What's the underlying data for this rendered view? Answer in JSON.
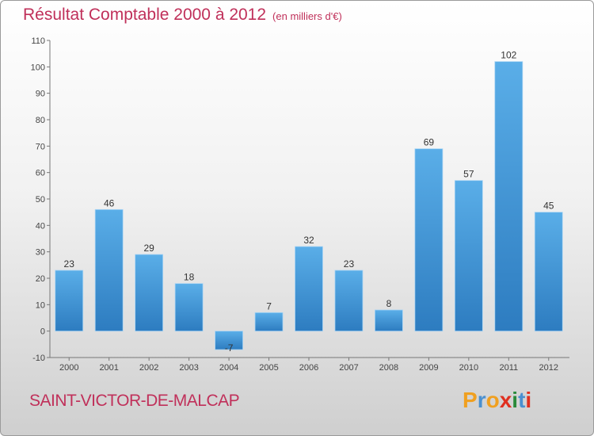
{
  "title": "Résultat Comptable 2000 à 2012",
  "subtitle": "(en milliers d'€)",
  "commune": "SAINT-VICTOR-DE-MALCAP",
  "logo": {
    "letters": [
      "P",
      "r",
      "o",
      "x",
      "i",
      "t",
      "i"
    ],
    "colors": [
      "#f0a020",
      "#4a90d0",
      "#f0a020",
      "#e03020",
      "#2a8a3a",
      "#4a90d0",
      "#e03020"
    ]
  },
  "colors": {
    "bar_top": "#5aaee8",
    "bar_bottom": "#2d7cc0",
    "title": "#c0305a"
  },
  "chart_data": {
    "type": "bar",
    "categories": [
      "2000",
      "2001",
      "2002",
      "2003",
      "2004",
      "2005",
      "2006",
      "2007",
      "2008",
      "2009",
      "2010",
      "2011",
      "2012"
    ],
    "values": [
      23,
      46,
      29,
      18,
      -7,
      7,
      32,
      23,
      8,
      69,
      57,
      102,
      45
    ],
    "value_labels": [
      "23",
      "46",
      "29",
      "18",
      "-7",
      "7",
      "32",
      "23",
      "8",
      "69",
      "57",
      "102",
      "45"
    ],
    "ylim": [
      -10,
      110
    ],
    "yticks": [
      -10,
      0,
      10,
      20,
      30,
      40,
      50,
      60,
      70,
      80,
      90,
      100,
      110
    ],
    "grid": false,
    "title": "Résultat Comptable 2000 à 2012",
    "xlabel": "",
    "ylabel": ""
  }
}
